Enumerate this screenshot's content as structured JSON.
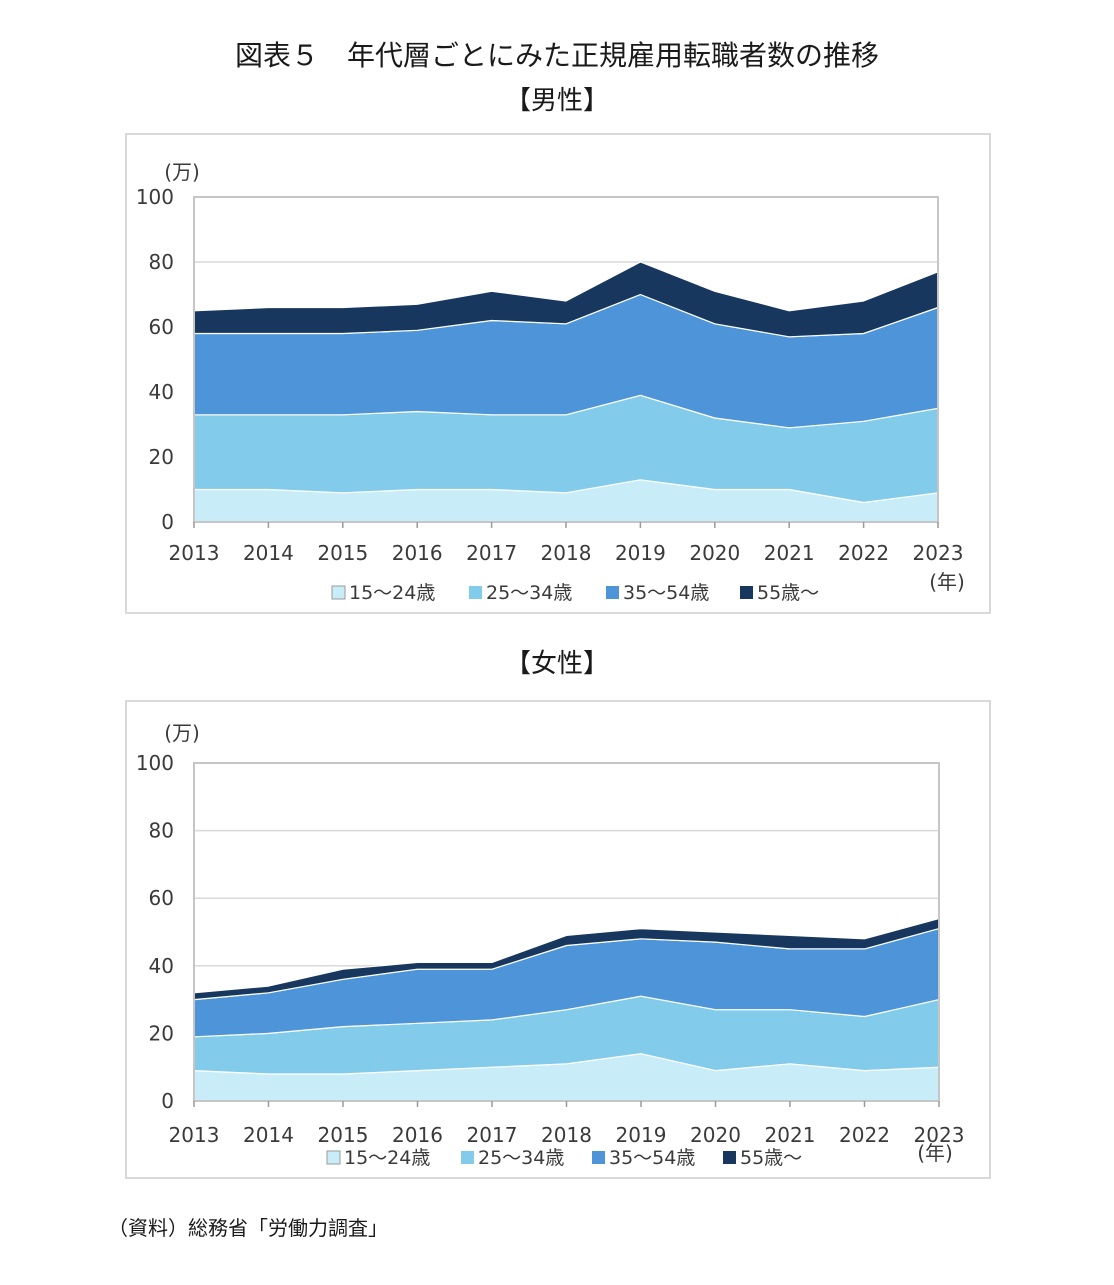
{
  "figure": {
    "title": "図表５　年代層ごとにみた正規雇用転職者数の推移",
    "source": "（資料）総務省「労働力調査」"
  },
  "colors": {
    "15~24": "#c9ecf9",
    "25~34": "#83cbeb",
    "35~54": "#4d94d8",
    "55+": "#18375e",
    "grid": "#d9d9d9",
    "plot_border": "#c6c6c6"
  },
  "chart_data": [
    {
      "type": "area",
      "stacked": true,
      "title": "【男性】",
      "y_unit_label": "(万)",
      "x_unit_label": "(年)",
      "ylim": [
        0,
        100
      ],
      "yticks": [
        0,
        20,
        40,
        60,
        80,
        100
      ],
      "grid": true,
      "legend_position": "bottom",
      "categories": [
        "2013",
        "2014",
        "2015",
        "2016",
        "2017",
        "2018",
        "2019",
        "2020",
        "2021",
        "2022",
        "2023"
      ],
      "series": [
        {
          "name": "15～24歳",
          "values": [
            10,
            10,
            9,
            10,
            10,
            9,
            13,
            10,
            10,
            6,
            9
          ]
        },
        {
          "name": "25～34歳",
          "values": [
            23,
            23,
            24,
            24,
            23,
            24,
            26,
            22,
            19,
            25,
            26
          ]
        },
        {
          "name": "35～54歳",
          "values": [
            25,
            25,
            25,
            25,
            29,
            28,
            31,
            29,
            28,
            27,
            31
          ]
        },
        {
          "name": "55歳～",
          "values": [
            7,
            8,
            8,
            8,
            9,
            7,
            10,
            10,
            8,
            10,
            11
          ]
        }
      ]
    },
    {
      "type": "area",
      "stacked": true,
      "title": "【女性】",
      "y_unit_label": "(万)",
      "x_unit_label": "(年)",
      "ylim": [
        0,
        100
      ],
      "yticks": [
        0,
        20,
        40,
        60,
        80,
        100
      ],
      "grid": true,
      "legend_position": "bottom",
      "categories": [
        "2013",
        "2014",
        "2015",
        "2016",
        "2017",
        "2018",
        "2019",
        "2020",
        "2021",
        "2022",
        "2023"
      ],
      "series": [
        {
          "name": "15～24歳",
          "values": [
            9,
            8,
            8,
            9,
            10,
            11,
            14,
            9,
            11,
            9,
            10
          ]
        },
        {
          "name": "25～34歳",
          "values": [
            10,
            12,
            14,
            14,
            14,
            16,
            17,
            18,
            16,
            16,
            20
          ]
        },
        {
          "name": "35～54歳",
          "values": [
            11,
            12,
            14,
            16,
            15,
            19,
            17,
            20,
            18,
            20,
            21
          ]
        },
        {
          "name": "55歳～",
          "values": [
            2,
            2,
            3,
            2,
            2,
            3,
            3,
            3,
            4,
            3,
            3
          ]
        }
      ]
    }
  ]
}
